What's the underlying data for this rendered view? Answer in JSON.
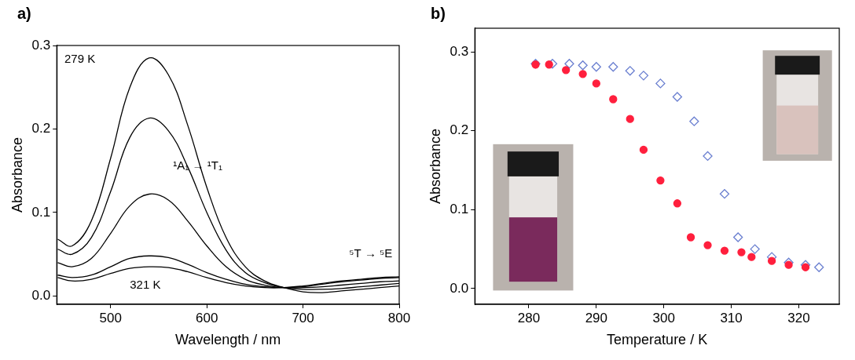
{
  "chart_data": [
    {
      "type": "line",
      "panel": "a)",
      "x_label": "Wavelength / nm",
      "y_label": "Absorbance",
      "xlim": [
        444,
        800
      ],
      "xticks": [
        500,
        600,
        700,
        800
      ],
      "ylim": [
        -0.01,
        0.3
      ],
      "yticks": [
        {
          "value": 0,
          "label": "0.0"
        },
        0.1,
        0.2,
        0.3
      ],
      "grid": false,
      "x": [
        445,
        460,
        480,
        500,
        520,
        540,
        560,
        580,
        600,
        620,
        640,
        660,
        680,
        700,
        720,
        740,
        760,
        780,
        800
      ],
      "series": [
        {
          "color": "#000000",
          "values": [
            0.068,
            0.06,
            0.09,
            0.165,
            0.25,
            0.285,
            0.265,
            0.205,
            0.13,
            0.07,
            0.035,
            0.018,
            0.01,
            0.005,
            0.004,
            0.006,
            0.008,
            0.01,
            0.012
          ]
        },
        {
          "color": "#000000",
          "values": [
            0.056,
            0.05,
            0.07,
            0.125,
            0.19,
            0.213,
            0.198,
            0.155,
            0.1,
            0.055,
            0.028,
            0.016,
            0.01,
            0.008,
            0.008,
            0.009,
            0.011,
            0.013,
            0.015
          ]
        },
        {
          "color": "#000000",
          "values": [
            0.04,
            0.035,
            0.045,
            0.075,
            0.108,
            0.122,
            0.115,
            0.09,
            0.06,
            0.035,
            0.02,
            0.013,
            0.01,
            0.01,
            0.011,
            0.013,
            0.015,
            0.017,
            0.018
          ]
        },
        {
          "color": "#000000",
          "values": [
            0.025,
            0.022,
            0.025,
            0.035,
            0.045,
            0.048,
            0.046,
            0.038,
            0.028,
            0.02,
            0.014,
            0.011,
            0.01,
            0.011,
            0.014,
            0.017,
            0.019,
            0.021,
            0.022
          ]
        },
        {
          "color": "#000000",
          "values": [
            0.022,
            0.018,
            0.02,
            0.027,
            0.033,
            0.035,
            0.034,
            0.029,
            0.022,
            0.016,
            0.012,
            0.01,
            0.01,
            0.012,
            0.015,
            0.018,
            0.02,
            0.022,
            0.023
          ]
        }
      ],
      "annotations": [
        {
          "text": "279 K",
          "x": 452,
          "y": 0.283
        },
        {
          "text": "¹A₁ → ¹T₁",
          "x": 565,
          "y": 0.155
        },
        {
          "text": "321 K",
          "x": 520,
          "y": 0.013
        },
        {
          "text": "⁵T → ⁵E",
          "x": 748,
          "y": 0.05
        }
      ]
    },
    {
      "type": "scatter",
      "panel": "b)",
      "x_label": "Temperature / K",
      "y_label": "Absorbance",
      "xlim": [
        272,
        326
      ],
      "xticks": [
        280,
        290,
        300,
        310,
        320
      ],
      "ylim": [
        -0.02,
        0.33
      ],
      "yticks": [
        {
          "value": 0,
          "label": "0.0"
        },
        0.1,
        0.2,
        0.3
      ],
      "grid": false,
      "series": [
        {
          "color": "#ff1f3d",
          "marker": "circle",
          "x": [
            281,
            283,
            285.5,
            288,
            290,
            292.5,
            295,
            297,
            299.5,
            302,
            304,
            306.5,
            309,
            311.5,
            313,
            316,
            318.5,
            321
          ],
          "values": [
            0.284,
            0.284,
            0.277,
            0.272,
            0.26,
            0.24,
            0.215,
            0.176,
            0.137,
            0.108,
            0.065,
            0.055,
            0.048,
            0.046,
            0.04,
            0.035,
            0.03,
            0.027
          ]
        },
        {
          "color": "#6a7fd0",
          "marker": "open_diamond",
          "x": [
            281,
            283.5,
            286,
            288,
            290,
            292.5,
            295,
            297,
            299.5,
            302,
            304.5,
            306.5,
            309,
            311,
            313.5,
            316,
            318.5,
            321,
            323
          ],
          "values": [
            0.285,
            0.285,
            0.285,
            0.283,
            0.281,
            0.281,
            0.276,
            0.27,
            0.26,
            0.243,
            0.212,
            0.168,
            0.12,
            0.065,
            0.05,
            0.04,
            0.033,
            0.03,
            0.027
          ]
        }
      ]
    }
  ]
}
